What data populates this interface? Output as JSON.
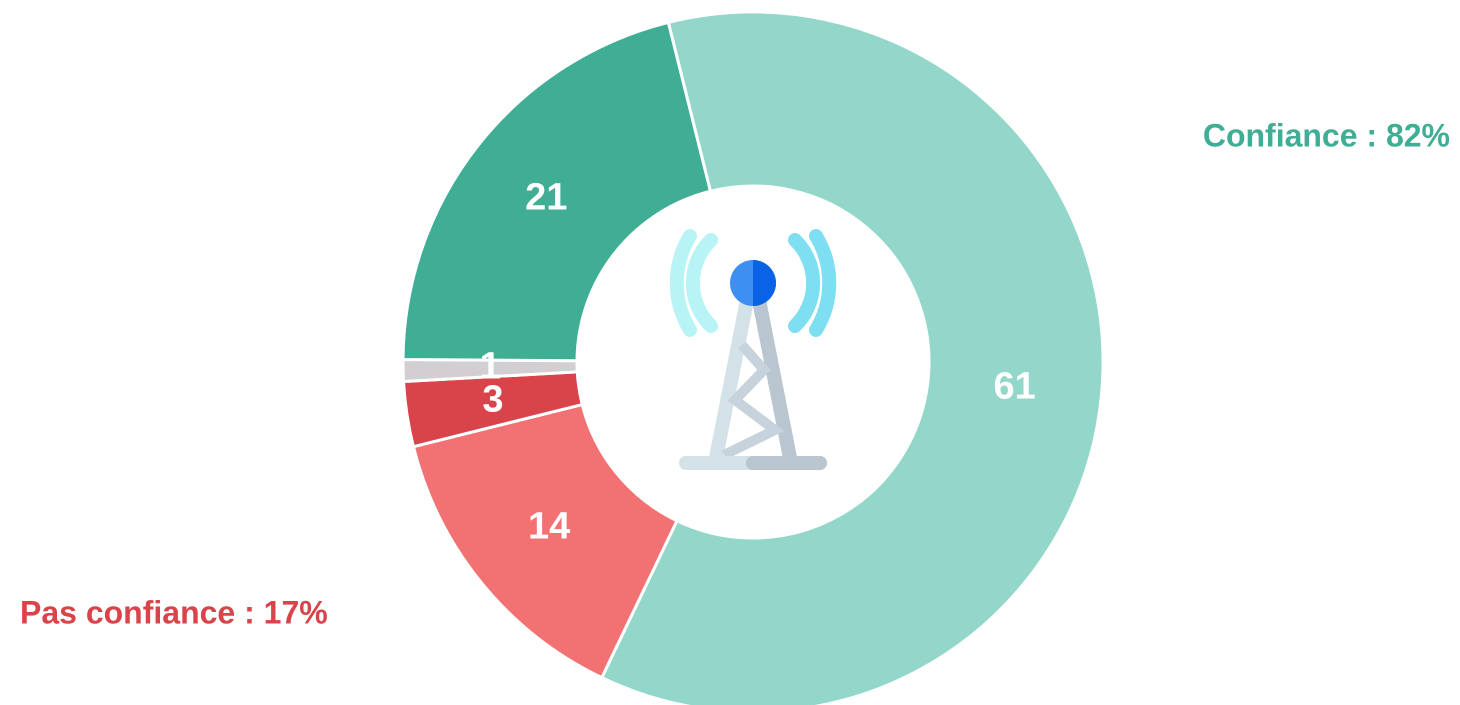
{
  "chart_data": {
    "type": "donut",
    "values": [
      61,
      14,
      3,
      1,
      21
    ],
    "colors": [
      "#92d7c9",
      "#f27274",
      "#d9434a",
      "#d3ced1",
      "#3fae95"
    ],
    "annotations": [
      {
        "text": "Confiance : 82%",
        "color": "#3fae95"
      },
      {
        "text": "Pas confiance : 17%",
        "color": "#d9434a"
      }
    ]
  }
}
